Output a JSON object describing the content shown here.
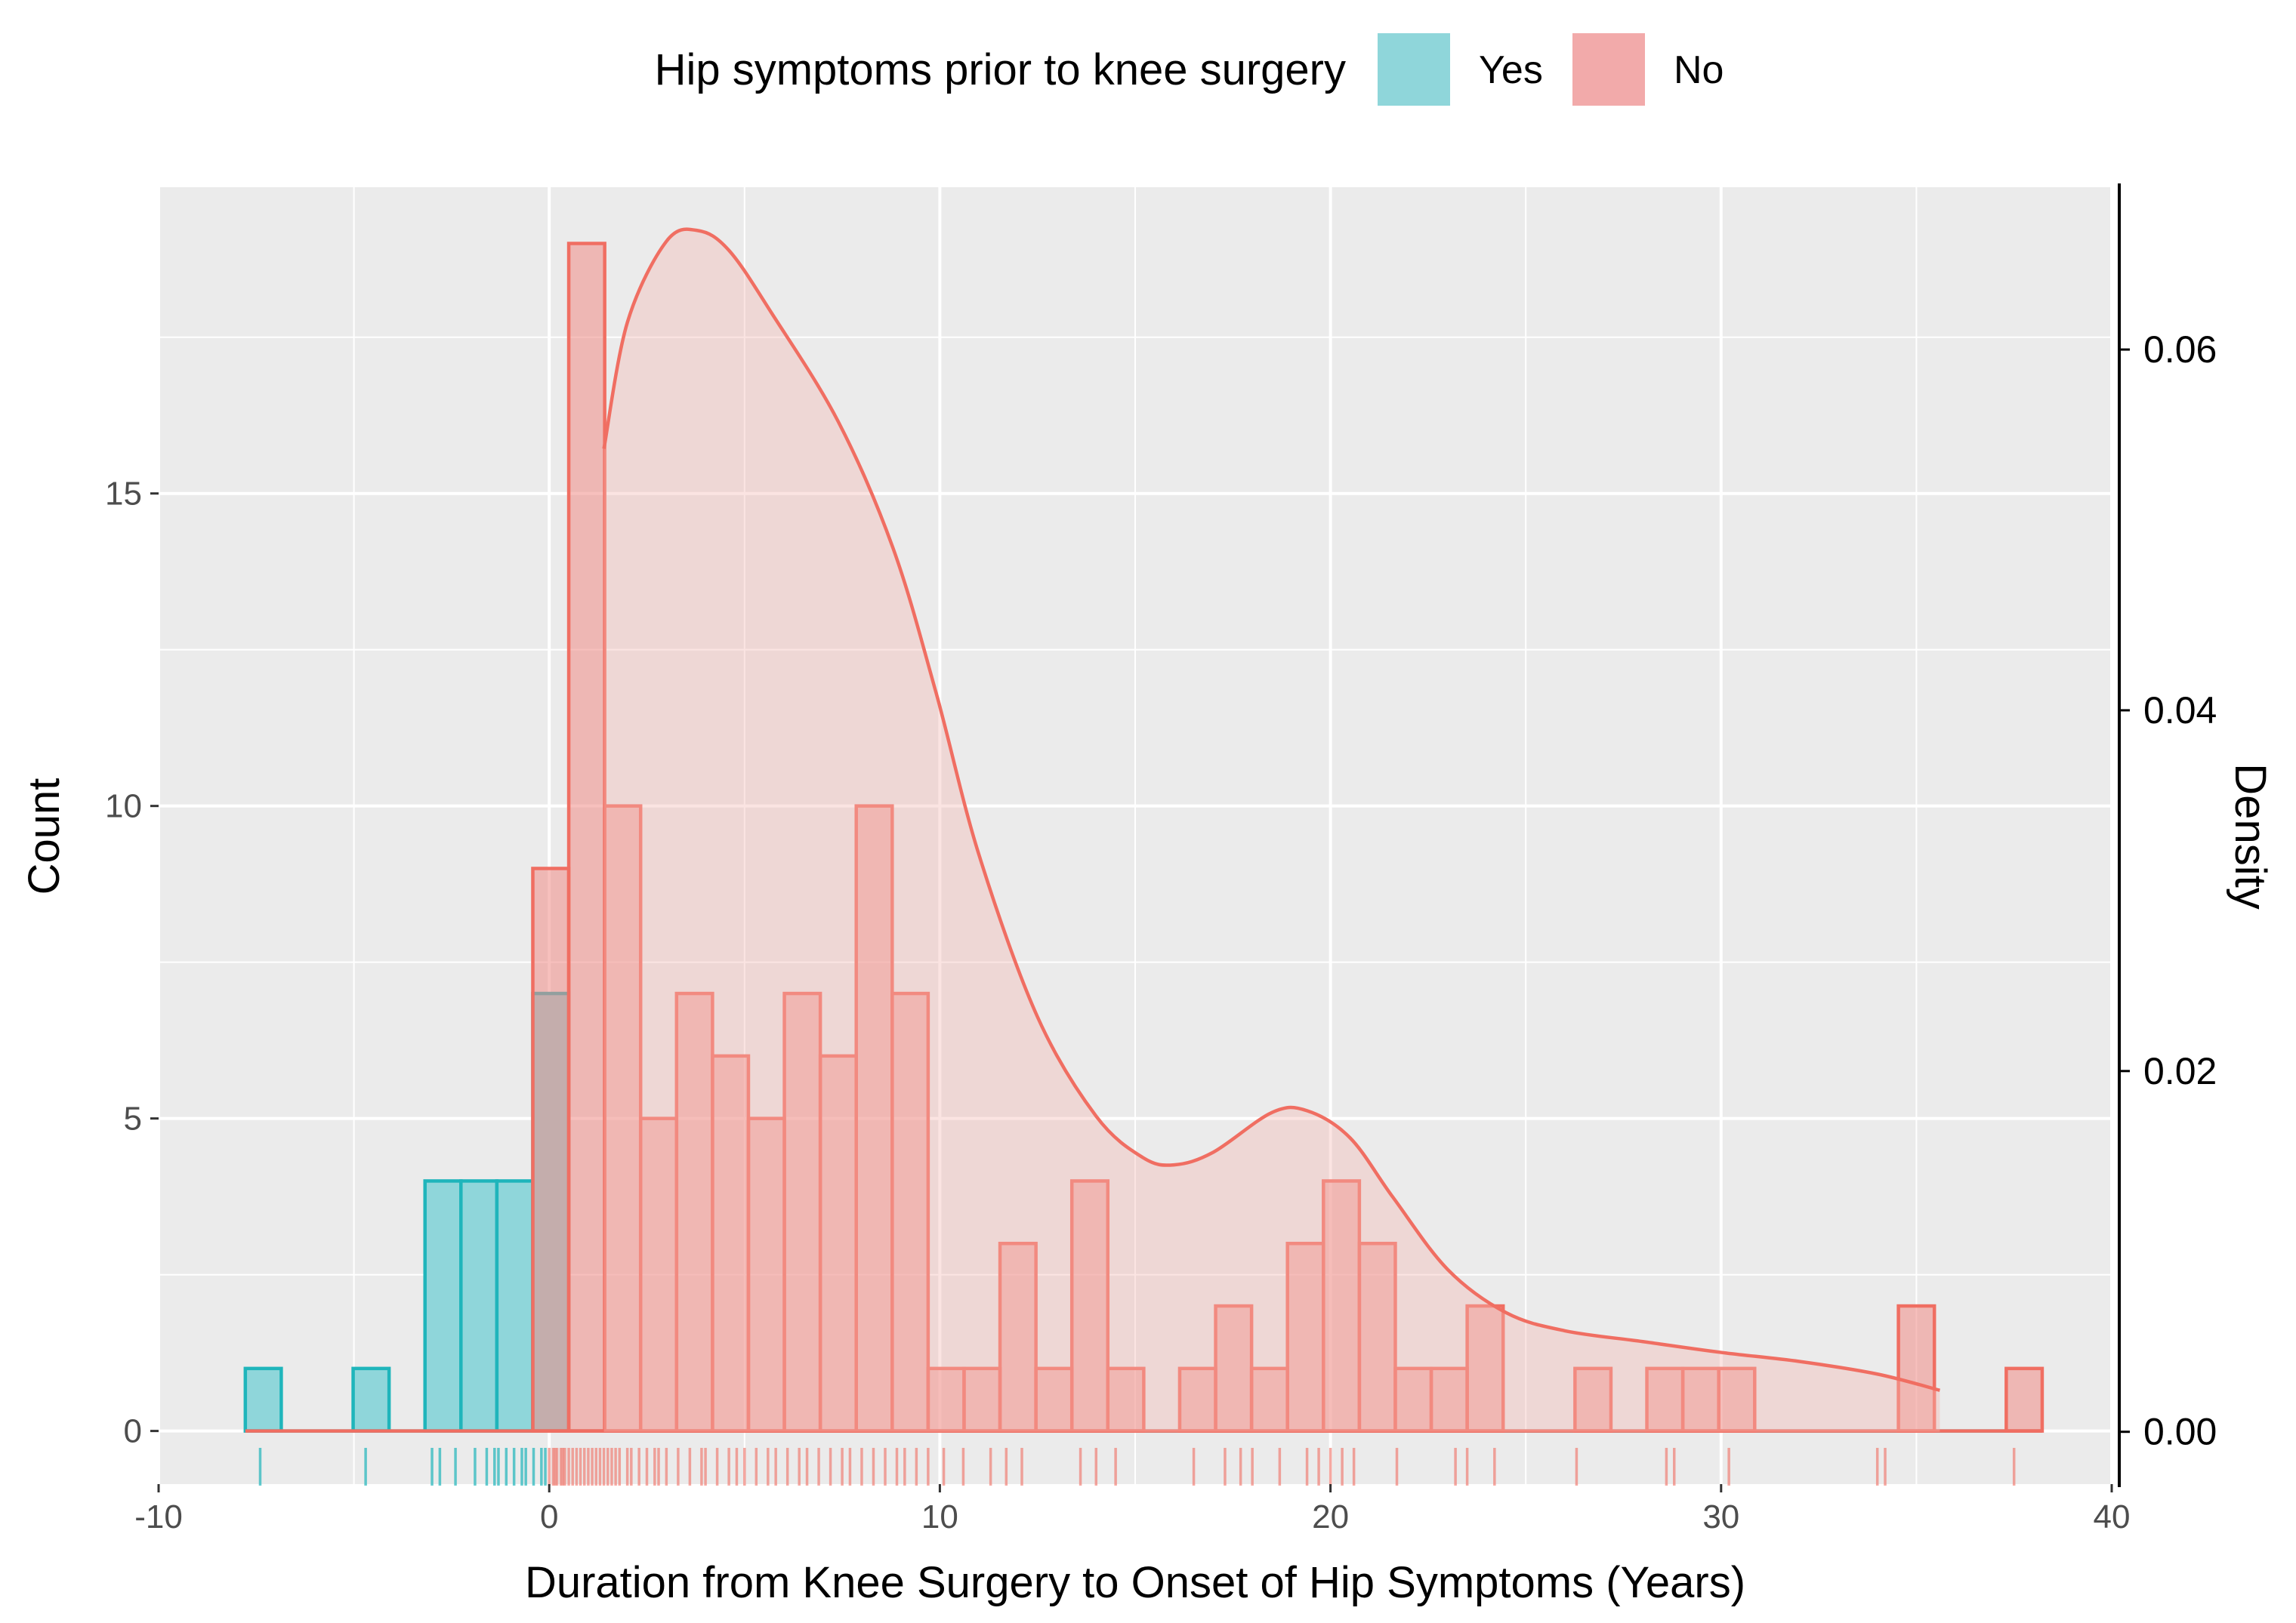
{
  "chart_data": {
    "type": "bar",
    "title": "",
    "xlabel": "Duration from Knee Surgery to Onset of Hip Symptoms (Years)",
    "ylabel": "Count",
    "ylabel_right": "Density",
    "xlim": [
      -10,
      40
    ],
    "ylim": [
      -0.85,
      19.9
    ],
    "ylim_right": [
      -0.0029,
      0.069
    ],
    "x_ticks": [
      "-10",
      "0",
      "10",
      "20",
      "30",
      "40"
    ],
    "y_ticks": [
      "0",
      "5",
      "10",
      "15"
    ],
    "y_right_ticks": [
      "0.00",
      "0.02",
      "0.04",
      "0.06"
    ],
    "legend": {
      "title": "Hip symptoms prior to knee surgery",
      "position": "top",
      "entries": [
        {
          "label": "Yes",
          "fill": "#8fd6da",
          "line": "#1fb5bb"
        },
        {
          "label": "No",
          "fill": "#f2aaaa",
          "line": "#f06e62"
        }
      ]
    },
    "bin_width": 0.92,
    "bin_start": -7.78,
    "series": [
      {
        "name": "Yes",
        "counts": [
          1,
          0,
          0,
          1,
          0,
          4,
          4,
          4,
          7,
          0,
          0,
          0,
          0,
          0,
          0,
          0,
          0,
          0,
          0,
          0,
          0,
          0,
          0,
          0,
          0,
          0,
          0,
          0,
          0,
          0,
          0,
          0,
          0,
          0,
          0,
          0,
          0,
          0,
          0,
          0,
          0,
          0,
          0,
          0,
          0,
          0,
          0,
          0,
          0,
          0
        ],
        "rug": [
          -7.4,
          -4.7,
          -3.0,
          -2.8,
          -2.4,
          -1.9,
          -1.6,
          -1.4,
          -1.3,
          -1.1,
          -0.9,
          -0.7,
          -0.6,
          -0.4,
          -0.2,
          -0.1
        ]
      },
      {
        "name": "No",
        "counts": [
          0,
          0,
          0,
          0,
          0,
          0,
          0,
          0,
          9,
          19,
          10,
          5,
          7,
          6,
          5,
          7,
          6,
          10,
          7,
          1,
          1,
          3,
          1,
          4,
          1,
          0,
          1,
          2,
          1,
          3,
          4,
          3,
          1,
          1,
          2,
          0,
          0,
          1,
          0,
          1,
          1,
          1,
          0,
          0,
          0,
          0,
          2,
          0,
          0,
          1
        ],
        "density": [
          {
            "x": 1.4,
            "y": 0.0545
          },
          {
            "x": 2.0,
            "y": 0.0615
          },
          {
            "x": 3.0,
            "y": 0.066
          },
          {
            "x": 3.8,
            "y": 0.0666
          },
          {
            "x": 4.6,
            "y": 0.0655
          },
          {
            "x": 5.7,
            "y": 0.062
          },
          {
            "x": 7.4,
            "y": 0.056
          },
          {
            "x": 8.8,
            "y": 0.049
          },
          {
            "x": 9.9,
            "y": 0.041
          },
          {
            "x": 11.0,
            "y": 0.032
          },
          {
            "x": 12.5,
            "y": 0.023
          },
          {
            "x": 14.0,
            "y": 0.0175
          },
          {
            "x": 15.2,
            "y": 0.0152
          },
          {
            "x": 16.0,
            "y": 0.0148
          },
          {
            "x": 17.0,
            "y": 0.0155
          },
          {
            "x": 18.5,
            "y": 0.0177
          },
          {
            "x": 19.4,
            "y": 0.0178
          },
          {
            "x": 20.5,
            "y": 0.0163
          },
          {
            "x": 21.6,
            "y": 0.013
          },
          {
            "x": 23.0,
            "y": 0.009
          },
          {
            "x": 24.5,
            "y": 0.0066
          },
          {
            "x": 26.0,
            "y": 0.0056
          },
          {
            "x": 28.0,
            "y": 0.005
          },
          {
            "x": 30.0,
            "y": 0.0044
          },
          {
            "x": 32.0,
            "y": 0.0039
          },
          {
            "x": 34.0,
            "y": 0.0032
          },
          {
            "x": 35.6,
            "y": 0.0023
          }
        ],
        "rug": [
          0.0,
          0.1,
          0.15,
          0.2,
          0.3,
          0.35,
          0.4,
          0.5,
          0.6,
          0.7,
          0.8,
          0.9,
          1.0,
          1.1,
          1.2,
          1.3,
          1.4,
          1.5,
          1.6,
          1.7,
          1.8,
          2.0,
          2.1,
          2.3,
          2.5,
          2.7,
          2.8,
          3.0,
          3.3,
          3.6,
          3.9,
          4.0,
          4.3,
          4.6,
          4.8,
          5.0,
          5.3,
          5.6,
          5.8,
          6.1,
          6.4,
          6.6,
          6.9,
          7.2,
          7.5,
          7.7,
          8.0,
          8.3,
          8.6,
          8.9,
          9.1,
          9.4,
          9.7,
          10.1,
          10.6,
          11.3,
          11.7,
          12.1,
          13.6,
          14.0,
          14.5,
          16.5,
          17.3,
          17.7,
          18.0,
          18.7,
          19.4,
          19.7,
          20.0,
          20.3,
          20.6,
          21.7,
          23.2,
          23.5,
          24.2,
          26.3,
          28.6,
          28.8,
          30.2,
          34.0,
          34.2,
          37.5
        ]
      }
    ]
  }
}
